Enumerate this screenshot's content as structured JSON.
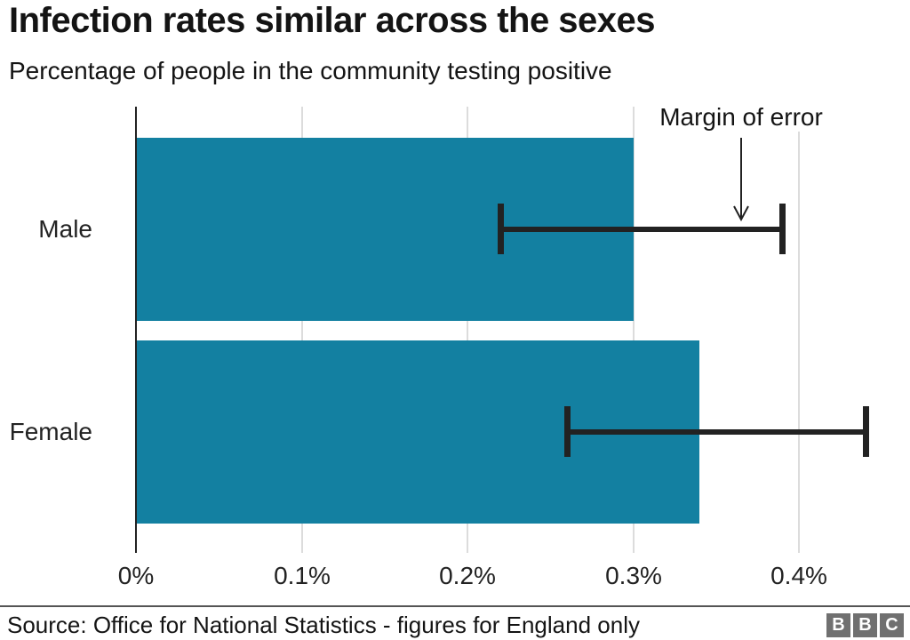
{
  "header": {
    "title": "Infection rates similar across the sexes",
    "subtitle": "Percentage of people in the community testing positive"
  },
  "chart_data": {
    "type": "bar",
    "orientation": "horizontal",
    "title": "Infection rates similar across the sexes",
    "subtitle": "Percentage of people in the community testing positive",
    "categories": [
      "Male",
      "Female"
    ],
    "values": [
      0.3,
      0.34
    ],
    "unit": "%",
    "error_bars": {
      "low": [
        0.22,
        0.26
      ],
      "high": [
        0.39,
        0.44
      ]
    },
    "x_ticks": [
      {
        "value": 0.0,
        "label": "0%"
      },
      {
        "value": 0.1,
        "label": "0.1%"
      },
      {
        "value": 0.2,
        "label": "0.2%"
      },
      {
        "value": 0.3,
        "label": "0.3%"
      },
      {
        "value": 0.4,
        "label": "0.4%"
      }
    ],
    "xlim": [
      0,
      0.45
    ],
    "grid": "vertical",
    "legend": "none",
    "annotation": "Margin of error",
    "colors": {
      "bar": "#1380a1",
      "error_bar": "#222222",
      "gridline": "#dcdcdc",
      "axis": "#222222"
    }
  },
  "footer": {
    "source": "Source: Office for National Statistics - figures for England only",
    "logo_blocks": [
      "B",
      "B",
      "C"
    ]
  }
}
